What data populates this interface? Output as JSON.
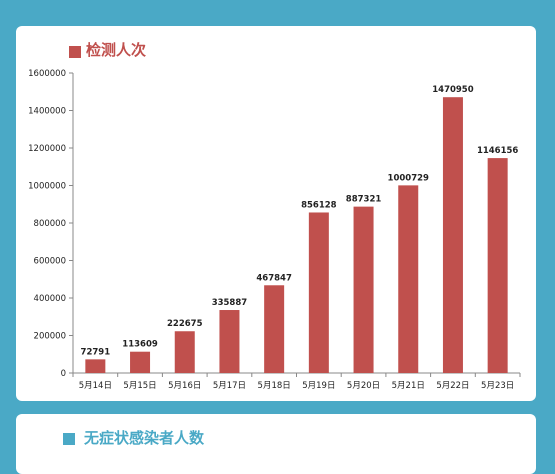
{
  "card1": {
    "title": "检测人次"
  },
  "card2": {
    "title": "无症状感染者人数"
  },
  "colors": {
    "bar": "#c0504d",
    "accent": "#4aa9c6",
    "axis": "#888888"
  },
  "chart_data": {
    "type": "bar",
    "title": "检测人次",
    "categories": [
      "5月14日",
      "5月15日",
      "5月16日",
      "5月17日",
      "5月18日",
      "5月19日",
      "5月20日",
      "5月21日",
      "5月22日",
      "5月23日"
    ],
    "values": [
      72791,
      113609,
      222675,
      335887,
      467847,
      856128,
      887321,
      1000729,
      1470950,
      1146156
    ],
    "ylim": [
      0,
      1600000
    ],
    "yticks": [
      0,
      200000,
      400000,
      600000,
      800000,
      1000000,
      1200000,
      1400000,
      1600000
    ],
    "xlabel": "",
    "ylabel": "",
    "grid": false,
    "legend": "none",
    "data_labels": true
  }
}
